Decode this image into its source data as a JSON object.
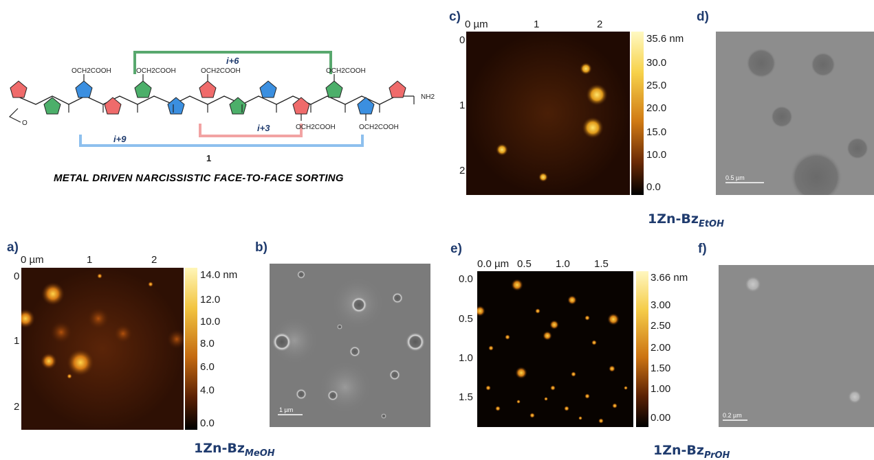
{
  "scheme": {
    "caption": "METAL DRIVEN NARCISSISTIC FACE-TO-FACE SORTING",
    "compound_number": "1",
    "side_chain_label": "OCH2COOH",
    "terminal_amide": "NH2",
    "bracket_labels": {
      "top": "i+6",
      "middle": "i+3",
      "bottom": "i+9"
    },
    "colors": {
      "red": "#ef6b6b",
      "green": "#4caf6a",
      "blue": "#3b8fe0",
      "i6": "#58a86e",
      "i3": "#f2a3a3",
      "i9": "#8ec0ee"
    }
  },
  "panels": {
    "a": {
      "label": "a)",
      "x_ticks": [
        "0 µm",
        "1",
        "2"
      ],
      "y_ticks": [
        "0",
        "1",
        "2"
      ],
      "colorbar_ticks": [
        "14.0 nm",
        "12.0",
        "10.0",
        "8.0",
        "6.0",
        "4.0",
        "0.0"
      ]
    },
    "b": {
      "label": "b)",
      "scale_bar": "1 µm"
    },
    "c": {
      "label": "c)",
      "x_ticks": [
        "0 µm",
        "1",
        "2"
      ],
      "y_ticks": [
        "0",
        "1",
        "2"
      ],
      "colorbar_ticks": [
        "35.6 nm",
        "30.0",
        "25.0",
        "20.0",
        "15.0",
        "10.0",
        "0.0"
      ]
    },
    "d": {
      "label": "d)",
      "scale_bar": "0.5 µm"
    },
    "e": {
      "label": "e)",
      "x_ticks": [
        "0.0 µm",
        "0.5",
        "1.0",
        "1.5"
      ],
      "y_ticks": [
        "0.0",
        "0.5",
        "1.0",
        "1.5"
      ],
      "colorbar_ticks": [
        "3.66 nm",
        "3.00",
        "2.50",
        "2.00",
        "1.50",
        "1.00",
        "0.00"
      ]
    },
    "f": {
      "label": "f)",
      "scale_bar": "0.2 µm"
    }
  },
  "sample_labels": {
    "etoh": {
      "main": "1Zn-Bz",
      "sub": "EtOH"
    },
    "meoh": {
      "main": "1Zn-Bz",
      "sub": "MeOH"
    },
    "proh": {
      "main": "1Zn-Bz",
      "sub": "PrOH"
    }
  }
}
